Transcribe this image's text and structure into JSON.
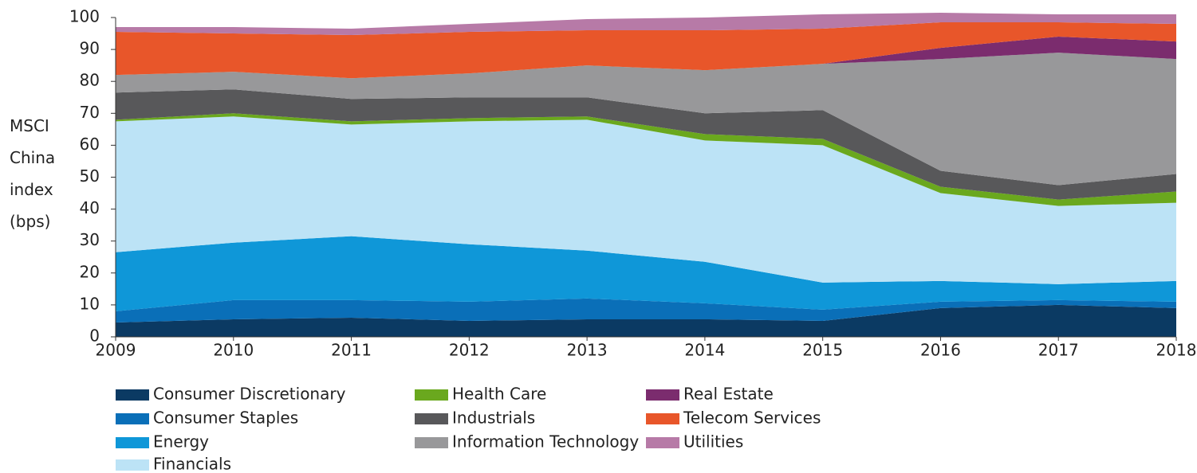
{
  "chart_data": {
    "type": "stacked_area",
    "ylabel": "MSCI China index (bps)",
    "x": [
      2009,
      2010,
      2011,
      2012,
      2013,
      2014,
      2015,
      2016,
      2017,
      2018
    ],
    "xlim": [
      2009,
      2018
    ],
    "xticks": [
      2009,
      2010,
      2011,
      2012,
      2013,
      2014,
      2015,
      2016,
      2017,
      2018
    ],
    "ylim": [
      0,
      100
    ],
    "yticks": [
      0,
      10,
      20,
      30,
      40,
      50,
      60,
      70,
      80,
      90,
      100
    ],
    "series": [
      {
        "name": "Consumer Discretionary",
        "color": "#0b3a63",
        "values": [
          4.5,
          5.5,
          6,
          5,
          5.5,
          5.5,
          5,
          9,
          10,
          9
        ]
      },
      {
        "name": "Consumer Staples",
        "color": "#0a6fb8",
        "values": [
          3.5,
          6,
          5.5,
          6,
          6.5,
          5,
          3.5,
          2,
          1.5,
          2
        ]
      },
      {
        "name": "Energy",
        "color": "#0f97d8",
        "values": [
          18.5,
          18,
          20,
          18,
          15,
          13,
          8.5,
          6.5,
          5,
          6.5
        ]
      },
      {
        "name": "Financials",
        "color": "#bce3f6",
        "values": [
          41,
          39.5,
          35,
          38.5,
          41,
          38,
          43,
          27.5,
          24.5,
          24.5
        ]
      },
      {
        "name": "Health Care",
        "color": "#6aa81e",
        "values": [
          0.5,
          1,
          1,
          1,
          1,
          2,
          2,
          2,
          2,
          3.5
        ]
      },
      {
        "name": "Industrials",
        "color": "#58585a",
        "values": [
          8.5,
          7.5,
          7,
          6.5,
          6,
          6.5,
          9,
          5,
          4.5,
          5.5
        ]
      },
      {
        "name": "Information Technology",
        "color": "#98989a",
        "values": [
          5.5,
          5.5,
          6.5,
          7.5,
          10,
          13.5,
          14.5,
          35,
          41.5,
          36
        ]
      },
      {
        "name": "Real Estate",
        "color": "#7b2c6e",
        "values": [
          0,
          0,
          0,
          0,
          0,
          0,
          0,
          3.5,
          5,
          5.5
        ]
      },
      {
        "name": "Telecom Services",
        "color": "#e8562a",
        "values": [
          13.5,
          12,
          13.5,
          13,
          11,
          12.5,
          11,
          8,
          4.5,
          5.5
        ]
      },
      {
        "name": "Utilities",
        "color": "#b77aa7",
        "values": [
          1.5,
          2,
          2,
          2.5,
          3.5,
          4,
          4.5,
          3,
          2.5,
          3
        ]
      }
    ]
  }
}
